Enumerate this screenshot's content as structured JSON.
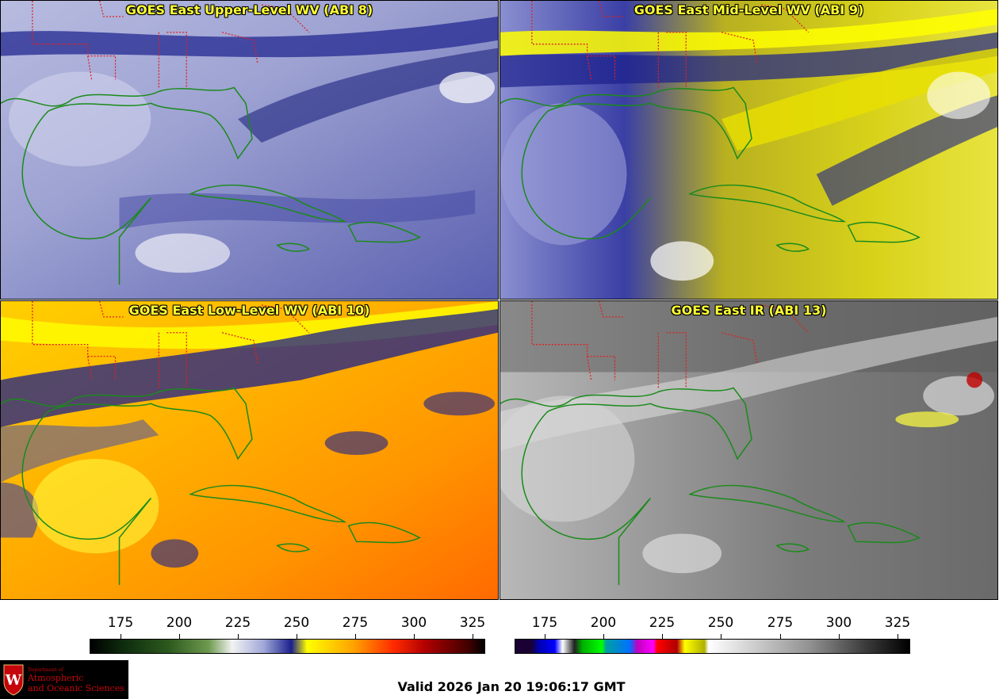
{
  "panels": [
    {
      "title": "GOES East Upper-Level WV (ABI 8)"
    },
    {
      "title": "GOES East Mid-Level WV (ABI 9)"
    },
    {
      "title": "GOES East Low-Level WV (ABI 10)"
    },
    {
      "title": "GOES East IR (ABI 13)"
    }
  ],
  "colorbars": [
    {
      "ticks": [
        "175",
        "200",
        "225",
        "250",
        "275",
        "300",
        "325"
      ]
    },
    {
      "ticks": [
        "175",
        "200",
        "225",
        "250",
        "275",
        "300",
        "325"
      ]
    }
  ],
  "logo": {
    "department": "Department of",
    "line1": "Atmospheric",
    "line2": "and Oceanic Sciences",
    "crest_letter": "W"
  },
  "valid_time": "Valid 2026 Jan 20 19:06:17 GMT",
  "colors": {
    "title_text": "#ffff33",
    "state_borders": "#e02020",
    "coastlines": "#1a8a1a",
    "logo_red": "#c5050c"
  }
}
